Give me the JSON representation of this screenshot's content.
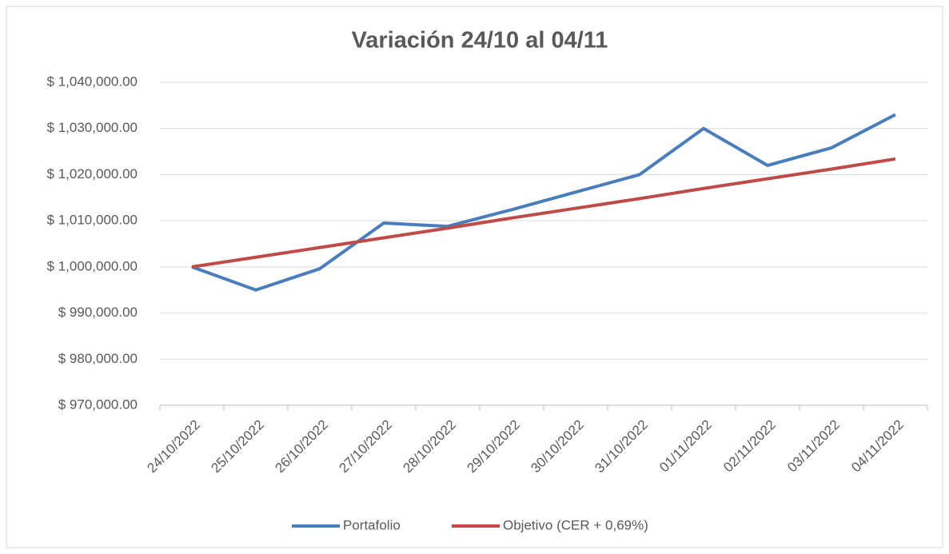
{
  "chart_data": {
    "type": "line",
    "title": "Variación 24/10 al 04/11",
    "categories": [
      "24/10/2022",
      "25/10/2022",
      "26/10/2022",
      "27/10/2022",
      "28/10/2022",
      "29/10/2022",
      "30/10/2022",
      "31/10/2022",
      "01/11/2022",
      "02/11/2022",
      "03/11/2022",
      "04/11/2022"
    ],
    "series": [
      {
        "name": "Portafolio",
        "color": "#4a7ebb",
        "values": [
          1000000,
          995000,
          999600,
          1009500,
          1008800,
          1012400,
          1016200,
          1020000,
          1030000,
          1022000,
          1025800,
          1033000
        ]
      },
      {
        "name": "Objetivo (CER + 0,69%)",
        "color": "#be4b48",
        "values": [
          1000000,
          1002100,
          1004200,
          1006300,
          1008400,
          1010600,
          1012700,
          1014800,
          1017000,
          1019100,
          1021200,
          1023400
        ]
      }
    ],
    "ylim": [
      970000,
      1040000
    ],
    "yticks": [
      {
        "value": 970000,
        "label": "$ 970,000.00"
      },
      {
        "value": 980000,
        "label": "$ 980,000.00"
      },
      {
        "value": 990000,
        "label": "$ 990,000.00"
      },
      {
        "value": 1000000,
        "label": "$ 1,000,000.00"
      },
      {
        "value": 1010000,
        "label": "$ 1,010,000.00"
      },
      {
        "value": 1020000,
        "label": "$ 1,020,000.00"
      },
      {
        "value": 1030000,
        "label": "$ 1,030,000.00"
      },
      {
        "value": 1040000,
        "label": "$ 1,040,000.00"
      }
    ],
    "grid": true,
    "legend": "bottom"
  }
}
